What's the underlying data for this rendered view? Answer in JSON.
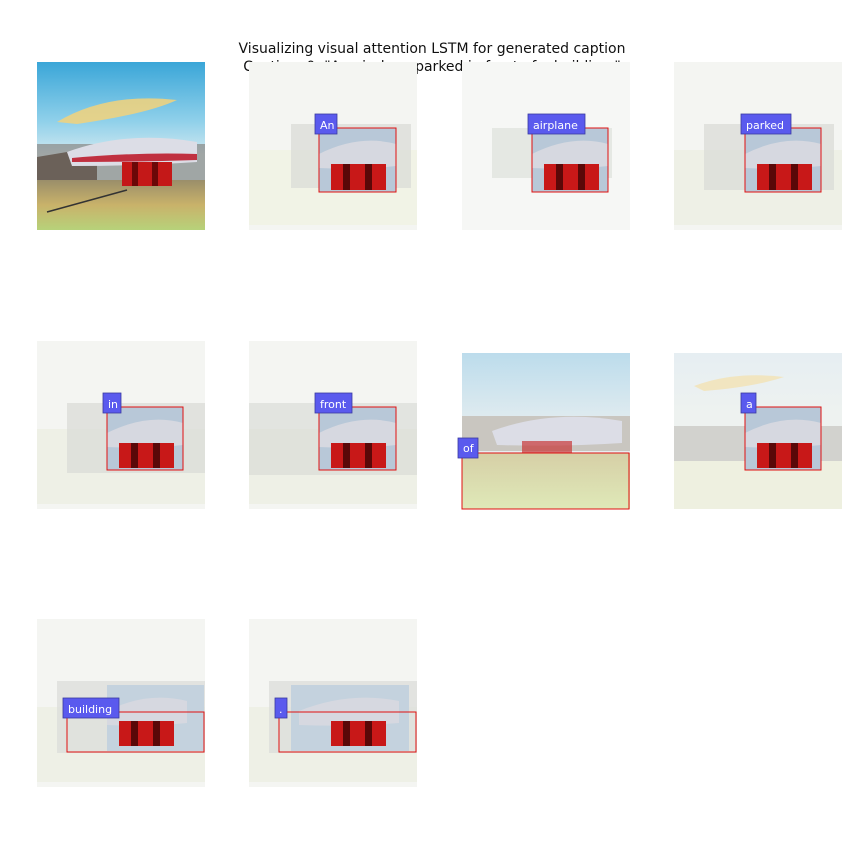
{
  "figure": {
    "title_line1": "Visualizing visual attention LSTM for generated caption",
    "title_line2": "Caption: 0, \"An airplane parked in front of a building.\""
  },
  "panels": [
    {
      "word": "An"
    },
    {
      "word": "airplane"
    },
    {
      "word": "parked"
    },
    {
      "word": "in"
    },
    {
      "word": "front"
    },
    {
      "word": "of"
    },
    {
      "word": "a"
    },
    {
      "word": "building"
    },
    {
      "word": "."
    }
  ],
  "colors": {
    "box": "#e01010",
    "label_bg": "#5a5aee",
    "label_border": "#3a3aa0"
  }
}
